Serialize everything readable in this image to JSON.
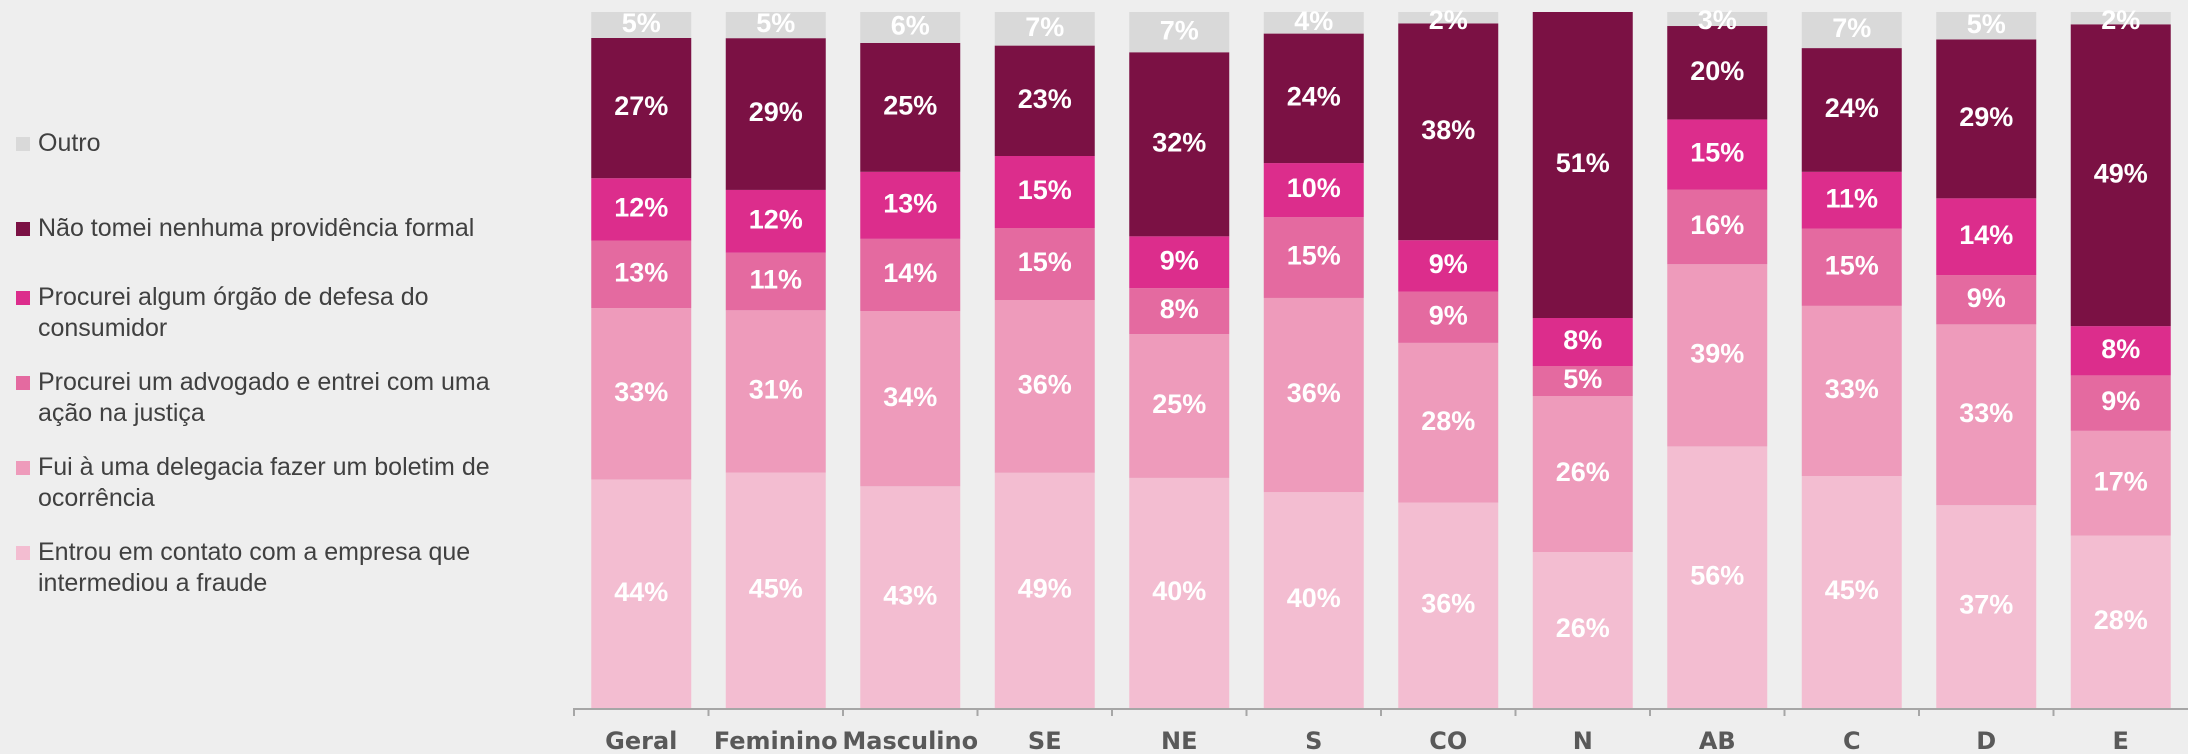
{
  "chart_data": {
    "type": "bar",
    "stacked": true,
    "normalized": true,
    "categories": [
      "Geral",
      "Feminino",
      "Masculino",
      "SE",
      "NE",
      "S",
      "CO",
      "N",
      "AB",
      "C",
      "D",
      "E"
    ],
    "series": [
      {
        "name": "Entrou em contato com a empresa que intermediou a fraude",
        "color": "#f3bdd1",
        "values": [
          44,
          45,
          43,
          49,
          40,
          40,
          36,
          26,
          56,
          45,
          37,
          28
        ]
      },
      {
        "name": "Fui à uma delegacia fazer um boletim de ocorrência",
        "color": "#ee9bbb",
        "values": [
          33,
          31,
          34,
          36,
          25,
          36,
          28,
          26,
          39,
          33,
          33,
          17
        ]
      },
      {
        "name": "Procurei um advogado e entrei com uma ação na justiça",
        "color": "#e46aa0",
        "values": [
          13,
          11,
          14,
          15,
          8,
          15,
          9,
          5,
          16,
          15,
          9,
          9
        ]
      },
      {
        "name": "Procurei algum órgão de defesa do consumidor",
        "color": "#dc2d8c",
        "values": [
          12,
          12,
          13,
          15,
          9,
          10,
          9,
          8,
          15,
          11,
          14,
          8
        ]
      },
      {
        "name": "Não tomei nenhuma providência formal",
        "color": "#7b1144",
        "values": [
          27,
          29,
          25,
          23,
          32,
          24,
          38,
          51,
          20,
          24,
          29,
          49
        ]
      },
      {
        "name": "Outro",
        "color": "#d9d9d9",
        "values": [
          5,
          5,
          6,
          7,
          7,
          4,
          2,
          null,
          3,
          7,
          5,
          2
        ]
      }
    ],
    "value_labels": [
      [
        "44%",
        "45%",
        "43%",
        "49%",
        "40%",
        "40%",
        "36%",
        "26%",
        "56%",
        "45%",
        "37%",
        "28%"
      ],
      [
        "33%",
        "31%",
        "34%",
        "36%",
        "25%",
        "36%",
        "28%",
        "26%",
        "39%",
        "33%",
        "33%",
        "17%"
      ],
      [
        "13%",
        "11%",
        "14%",
        "15%",
        "8%",
        "15%",
        "9%",
        "5%",
        "16%",
        "15%",
        "9%",
        "9%"
      ],
      [
        "12%",
        "12%",
        "13%",
        "15%",
        "9%",
        "10%",
        "9%",
        "8%",
        "15%",
        "11%",
        "14%",
        "8%"
      ],
      [
        "27%",
        "29%",
        "25%",
        "23%",
        "32%",
        "24%",
        "38%",
        "51%",
        "20%",
        "24%",
        "29%",
        "49%"
      ],
      [
        "5%",
        "5%",
        "6%",
        "7%",
        "7%",
        "4%",
        "2%",
        null,
        "3%",
        "7%",
        "5%",
        "2%"
      ]
    ],
    "legend": "left"
  }
}
